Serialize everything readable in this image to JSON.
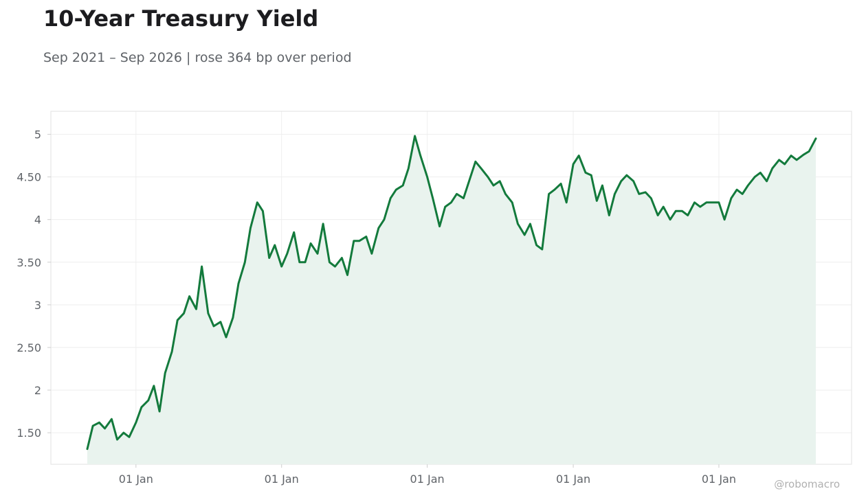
{
  "chart_data": {
    "type": "area",
    "title": "10-Year Treasury Yield",
    "subtitle": "Sep 2021 – Sep 2026 | rose 364 bp over period",
    "xlabel": "",
    "ylabel": "",
    "x_range": [
      "2021-09-01",
      "2026-09-01"
    ],
    "ylim": [
      1.13,
      5.27
    ],
    "y_ticks": [
      1.5,
      2,
      2.5,
      3,
      3.5,
      4,
      4.5,
      5
    ],
    "y_tick_labels": [
      "1.50",
      "2",
      "2.50",
      "3",
      "3.50",
      "4",
      "4.50",
      "5"
    ],
    "x_ticks": [
      "2022-01-01",
      "2023-01-01",
      "2024-01-01",
      "2025-01-01",
      "2026-01-01"
    ],
    "x_tick_labels": [
      "01 Jan",
      "01 Jan",
      "01 Jan",
      "01 Jan",
      "01 Jan"
    ],
    "grid": true,
    "line_color": "#137a3c",
    "fill_color": "#e9f3ee",
    "series": [
      {
        "x": [
          "2021-09-01",
          "2021-09-15",
          "2021-10-01",
          "2021-10-15",
          "2021-11-01",
          "2021-11-15",
          "2021-12-01",
          "2021-12-15",
          "2022-01-01",
          "2022-01-15",
          "2022-02-01",
          "2022-02-15",
          "2022-03-01",
          "2022-03-15",
          "2022-04-01",
          "2022-04-15",
          "2022-05-01",
          "2022-05-15",
          "2022-06-01",
          "2022-06-15",
          "2022-07-01",
          "2022-07-15",
          "2022-08-01",
          "2022-08-15",
          "2022-09-01",
          "2022-09-15",
          "2022-10-01",
          "2022-10-15",
          "2022-11-01",
          "2022-11-15",
          "2022-12-01",
          "2022-12-15",
          "2023-01-01",
          "2023-01-15",
          "2023-02-01",
          "2023-02-15",
          "2023-03-01",
          "2023-03-15",
          "2023-04-01",
          "2023-04-15",
          "2023-05-01",
          "2023-05-15",
          "2023-06-01",
          "2023-06-15",
          "2023-07-01",
          "2023-07-15",
          "2023-08-01",
          "2023-08-15",
          "2023-09-01",
          "2023-09-15",
          "2023-10-01",
          "2023-10-15",
          "2023-11-01",
          "2023-11-15",
          "2023-12-01",
          "2023-12-15",
          "2024-01-01",
          "2024-01-15",
          "2024-02-01",
          "2024-02-15",
          "2024-03-01",
          "2024-03-15",
          "2024-04-01",
          "2024-04-15",
          "2024-05-01",
          "2024-05-15",
          "2024-06-01",
          "2024-06-15",
          "2024-07-01",
          "2024-07-15",
          "2024-08-01",
          "2024-08-15",
          "2024-09-01",
          "2024-09-15",
          "2024-10-01",
          "2024-10-15",
          "2024-11-01",
          "2024-11-15",
          "2024-12-01",
          "2024-12-15",
          "2025-01-01",
          "2025-01-15",
          "2025-02-01",
          "2025-02-15",
          "2025-03-01",
          "2025-03-15",
          "2025-04-01",
          "2025-04-15",
          "2025-05-01",
          "2025-05-15",
          "2025-06-01",
          "2025-06-15",
          "2025-07-01",
          "2025-07-15",
          "2025-08-01",
          "2025-08-15",
          "2025-09-01",
          "2025-09-15",
          "2025-10-01",
          "2025-10-15",
          "2025-11-01",
          "2025-11-15",
          "2025-12-01",
          "2025-12-15",
          "2026-01-01",
          "2026-01-15",
          "2026-02-01",
          "2026-02-15",
          "2026-03-01",
          "2026-03-15",
          "2026-04-01",
          "2026-04-15",
          "2026-05-01",
          "2026-05-15",
          "2026-06-01",
          "2026-06-15",
          "2026-07-01",
          "2026-07-15",
          "2026-08-01",
          "2026-08-15",
          "2026-09-01"
        ],
        "values": [
          1.31,
          1.58,
          1.62,
          1.55,
          1.66,
          1.42,
          1.5,
          1.45,
          1.62,
          1.8,
          1.88,
          2.05,
          1.75,
          2.2,
          2.45,
          2.82,
          2.9,
          3.1,
          2.95,
          3.45,
          2.9,
          2.75,
          2.8,
          2.62,
          2.85,
          3.25,
          3.5,
          3.9,
          4.2,
          4.1,
          3.55,
          3.7,
          3.45,
          3.6,
          3.85,
          3.5,
          3.5,
          3.72,
          3.6,
          3.95,
          3.5,
          3.45,
          3.55,
          3.35,
          3.75,
          3.75,
          3.8,
          3.6,
          3.9,
          4.0,
          4.25,
          4.35,
          4.4,
          4.6,
          4.98,
          4.75,
          4.5,
          4.25,
          3.92,
          4.15,
          4.2,
          4.3,
          4.25,
          4.45,
          4.68,
          4.6,
          4.5,
          4.4,
          4.45,
          4.3,
          4.2,
          3.95,
          3.82,
          3.95,
          3.7,
          3.65,
          4.3,
          4.35,
          4.42,
          4.2,
          4.65,
          4.75,
          4.55,
          4.52,
          4.22,
          4.4,
          4.05,
          4.3,
          4.45,
          4.52,
          4.45,
          4.3,
          4.32,
          4.25,
          4.05,
          4.15,
          4.0,
          4.1,
          4.1,
          4.05,
          4.2,
          4.15,
          4.2,
          4.2,
          4.2,
          4.0,
          4.25,
          4.35,
          4.3,
          4.4,
          4.5,
          4.55,
          4.45,
          4.6,
          4.7,
          4.65,
          4.75,
          4.7,
          4.76,
          4.8,
          4.95
        ]
      }
    ]
  },
  "watermark": "@robomacro"
}
